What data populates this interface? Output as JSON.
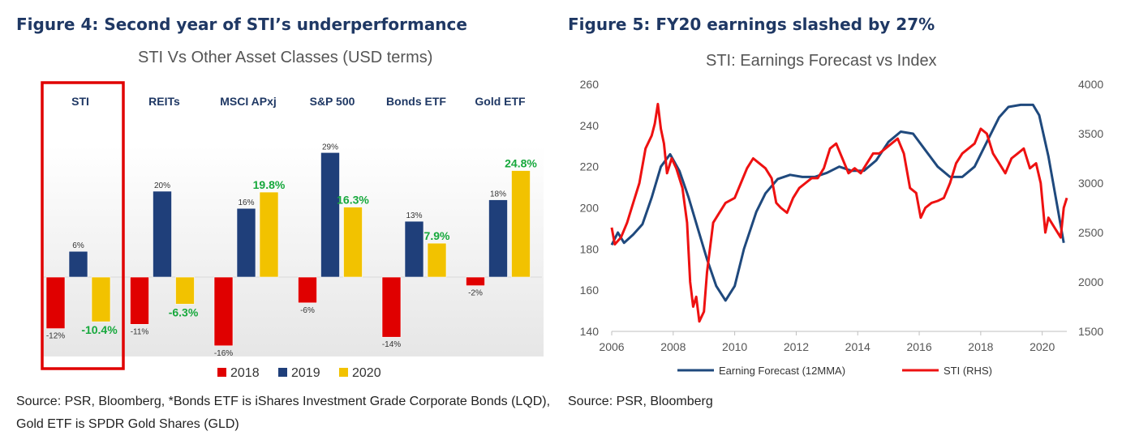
{
  "figure4": {
    "heading": "Figure 4: Second year of STI’s underperformance",
    "source": "Source: PSR, Bloomberg, *Bonds ETF is iShares Investment Grade Corporate Bonds (LQD), Gold ETF is SPDR Gold Shares (GLD)"
  },
  "figure5": {
    "heading": "Figure 5: FY20 earnings slashed by 27%",
    "source": "Source: PSR, Bloomberg"
  },
  "colors": {
    "bar2018": "#e00000",
    "bar2019": "#1f3f7a",
    "bar2020": "#f2c200",
    "highlight_box": "#e00000",
    "green_label": "#16a83c",
    "earnings_line": "#1f497d",
    "sti_line": "#ee1111",
    "title_navy": "#1f3864"
  },
  "chart_data": [
    {
      "type": "bar",
      "title": "STI Vs Other Asset Classes (USD terms)",
      "categories": [
        "STI",
        "REITs",
        "MSCI APxj",
        "S&P 500",
        "Bonds ETF",
        "Gold ETF"
      ],
      "highlighted_category": "STI",
      "series": [
        {
          "name": "2018",
          "values": [
            -12,
            -11,
            -16,
            -6,
            -14,
            -2
          ],
          "labels": [
            "-12%",
            "-11%",
            "-16%",
            "-6%",
            "-14%",
            "-2%"
          ]
        },
        {
          "name": "2019",
          "values": [
            6,
            20,
            16,
            29,
            13,
            18
          ],
          "labels": [
            "6%",
            "20%",
            "16%",
            "29%",
            "13%",
            "18%"
          ]
        },
        {
          "name": "2020",
          "values": [
            -10.4,
            -6.3,
            19.8,
            16.3,
            7.9,
            24.8
          ],
          "labels": [
            "-10.4%",
            "-6.3%",
            "19.8%",
            "16.3%",
            "7.9%",
            "24.8%"
          ]
        }
      ],
      "legend": [
        "2018",
        "2019",
        "2020"
      ],
      "legend_position": "bottom",
      "ylim": [
        -20,
        35
      ],
      "grid": false
    },
    {
      "type": "line",
      "title": "STI: Earnings Forecast vs Index",
      "x_ticks": [
        "2006",
        "2008",
        "2010",
        "2012",
        "2014",
        "2016",
        "2018",
        "2020"
      ],
      "x_range": [
        2006,
        2020.8
      ],
      "y_left": {
        "ticks": [
          "140",
          "160",
          "180",
          "200",
          "220",
          "240",
          "260"
        ],
        "range": [
          140,
          260
        ]
      },
      "y_right": {
        "ticks": [
          "1500",
          "2000",
          "2500",
          "3000",
          "3500",
          "4000"
        ],
        "range": [
          1500,
          4000
        ]
      },
      "grid": false,
      "legend_position": "bottom",
      "series": [
        {
          "name": "Earning Forecast (12MMA)",
          "axis": "left",
          "points": [
            [
              2006.0,
              182
            ],
            [
              2006.2,
              188
            ],
            [
              2006.4,
              183
            ],
            [
              2006.7,
              187
            ],
            [
              2007.0,
              192
            ],
            [
              2007.3,
              205
            ],
            [
              2007.6,
              220
            ],
            [
              2007.9,
              226
            ],
            [
              2008.2,
              218
            ],
            [
              2008.5,
              205
            ],
            [
              2008.8,
              190
            ],
            [
              2009.1,
              175
            ],
            [
              2009.4,
              162
            ],
            [
              2009.7,
              155
            ],
            [
              2010.0,
              162
            ],
            [
              2010.3,
              180
            ],
            [
              2010.7,
              198
            ],
            [
              2011.0,
              207
            ],
            [
              2011.4,
              214
            ],
            [
              2011.8,
              216
            ],
            [
              2012.2,
              215
            ],
            [
              2012.6,
              215
            ],
            [
              2013.0,
              217
            ],
            [
              2013.4,
              220
            ],
            [
              2013.8,
              218
            ],
            [
              2014.2,
              218
            ],
            [
              2014.6,
              223
            ],
            [
              2015.0,
              232
            ],
            [
              2015.4,
              237
            ],
            [
              2015.8,
              236
            ],
            [
              2016.2,
              228
            ],
            [
              2016.6,
              220
            ],
            [
              2017.0,
              215
            ],
            [
              2017.4,
              215
            ],
            [
              2017.8,
              220
            ],
            [
              2018.2,
              232
            ],
            [
              2018.6,
              244
            ],
            [
              2018.9,
              249
            ],
            [
              2019.3,
              250
            ],
            [
              2019.7,
              250
            ],
            [
              2019.9,
              245
            ],
            [
              2020.2,
              225
            ],
            [
              2020.5,
              200
            ],
            [
              2020.7,
              183
            ]
          ]
        },
        {
          "name": "STI (RHS)",
          "axis": "right",
          "points": [
            [
              2006.0,
              2550
            ],
            [
              2006.1,
              2380
            ],
            [
              2006.3,
              2450
            ],
            [
              2006.5,
              2600
            ],
            [
              2006.7,
              2800
            ],
            [
              2006.9,
              3000
            ],
            [
              2007.1,
              3350
            ],
            [
              2007.3,
              3480
            ],
            [
              2007.4,
              3600
            ],
            [
              2007.5,
              3800
            ],
            [
              2007.6,
              3550
            ],
            [
              2007.7,
              3400
            ],
            [
              2007.8,
              3100
            ],
            [
              2007.95,
              3250
            ],
            [
              2008.1,
              3150
            ],
            [
              2008.3,
              2950
            ],
            [
              2008.45,
              2600
            ],
            [
              2008.55,
              2000
            ],
            [
              2008.65,
              1750
            ],
            [
              2008.75,
              1850
            ],
            [
              2008.85,
              1600
            ],
            [
              2009.0,
              1700
            ],
            [
              2009.1,
              2100
            ],
            [
              2009.3,
              2600
            ],
            [
              2009.5,
              2700
            ],
            [
              2009.7,
              2800
            ],
            [
              2010.0,
              2850
            ],
            [
              2010.2,
              3000
            ],
            [
              2010.4,
              3150
            ],
            [
              2010.6,
              3250
            ],
            [
              2010.8,
              3200
            ],
            [
              2011.0,
              3150
            ],
            [
              2011.2,
              3050
            ],
            [
              2011.35,
              2800
            ],
            [
              2011.5,
              2750
            ],
            [
              2011.7,
              2700
            ],
            [
              2011.9,
              2850
            ],
            [
              2012.1,
              2950
            ],
            [
              2012.3,
              3000
            ],
            [
              2012.5,
              3050
            ],
            [
              2012.7,
              3050
            ],
            [
              2012.9,
              3150
            ],
            [
              2013.1,
              3350
            ],
            [
              2013.3,
              3400
            ],
            [
              2013.5,
              3250
            ],
            [
              2013.7,
              3100
            ],
            [
              2013.9,
              3150
            ],
            [
              2014.1,
              3100
            ],
            [
              2014.3,
              3200
            ],
            [
              2014.5,
              3300
            ],
            [
              2014.7,
              3300
            ],
            [
              2014.9,
              3350
            ],
            [
              2015.1,
              3400
            ],
            [
              2015.3,
              3450
            ],
            [
              2015.5,
              3300
            ],
            [
              2015.7,
              2950
            ],
            [
              2015.9,
              2900
            ],
            [
              2016.05,
              2650
            ],
            [
              2016.2,
              2750
            ],
            [
              2016.4,
              2800
            ],
            [
              2016.6,
              2820
            ],
            [
              2016.8,
              2850
            ],
            [
              2017.0,
              3000
            ],
            [
              2017.2,
              3200
            ],
            [
              2017.4,
              3300
            ],
            [
              2017.6,
              3350
            ],
            [
              2017.8,
              3400
            ],
            [
              2018.0,
              3550
            ],
            [
              2018.2,
              3500
            ],
            [
              2018.4,
              3300
            ],
            [
              2018.6,
              3200
            ],
            [
              2018.8,
              3100
            ],
            [
              2019.0,
              3250
            ],
            [
              2019.2,
              3300
            ],
            [
              2019.4,
              3350
            ],
            [
              2019.6,
              3150
            ],
            [
              2019.8,
              3200
            ],
            [
              2019.95,
              3000
            ],
            [
              2020.1,
              2500
            ],
            [
              2020.2,
              2650
            ],
            [
              2020.4,
              2550
            ],
            [
              2020.6,
              2450
            ],
            [
              2020.7,
              2750
            ],
            [
              2020.8,
              2850
            ]
          ]
        }
      ]
    }
  ]
}
